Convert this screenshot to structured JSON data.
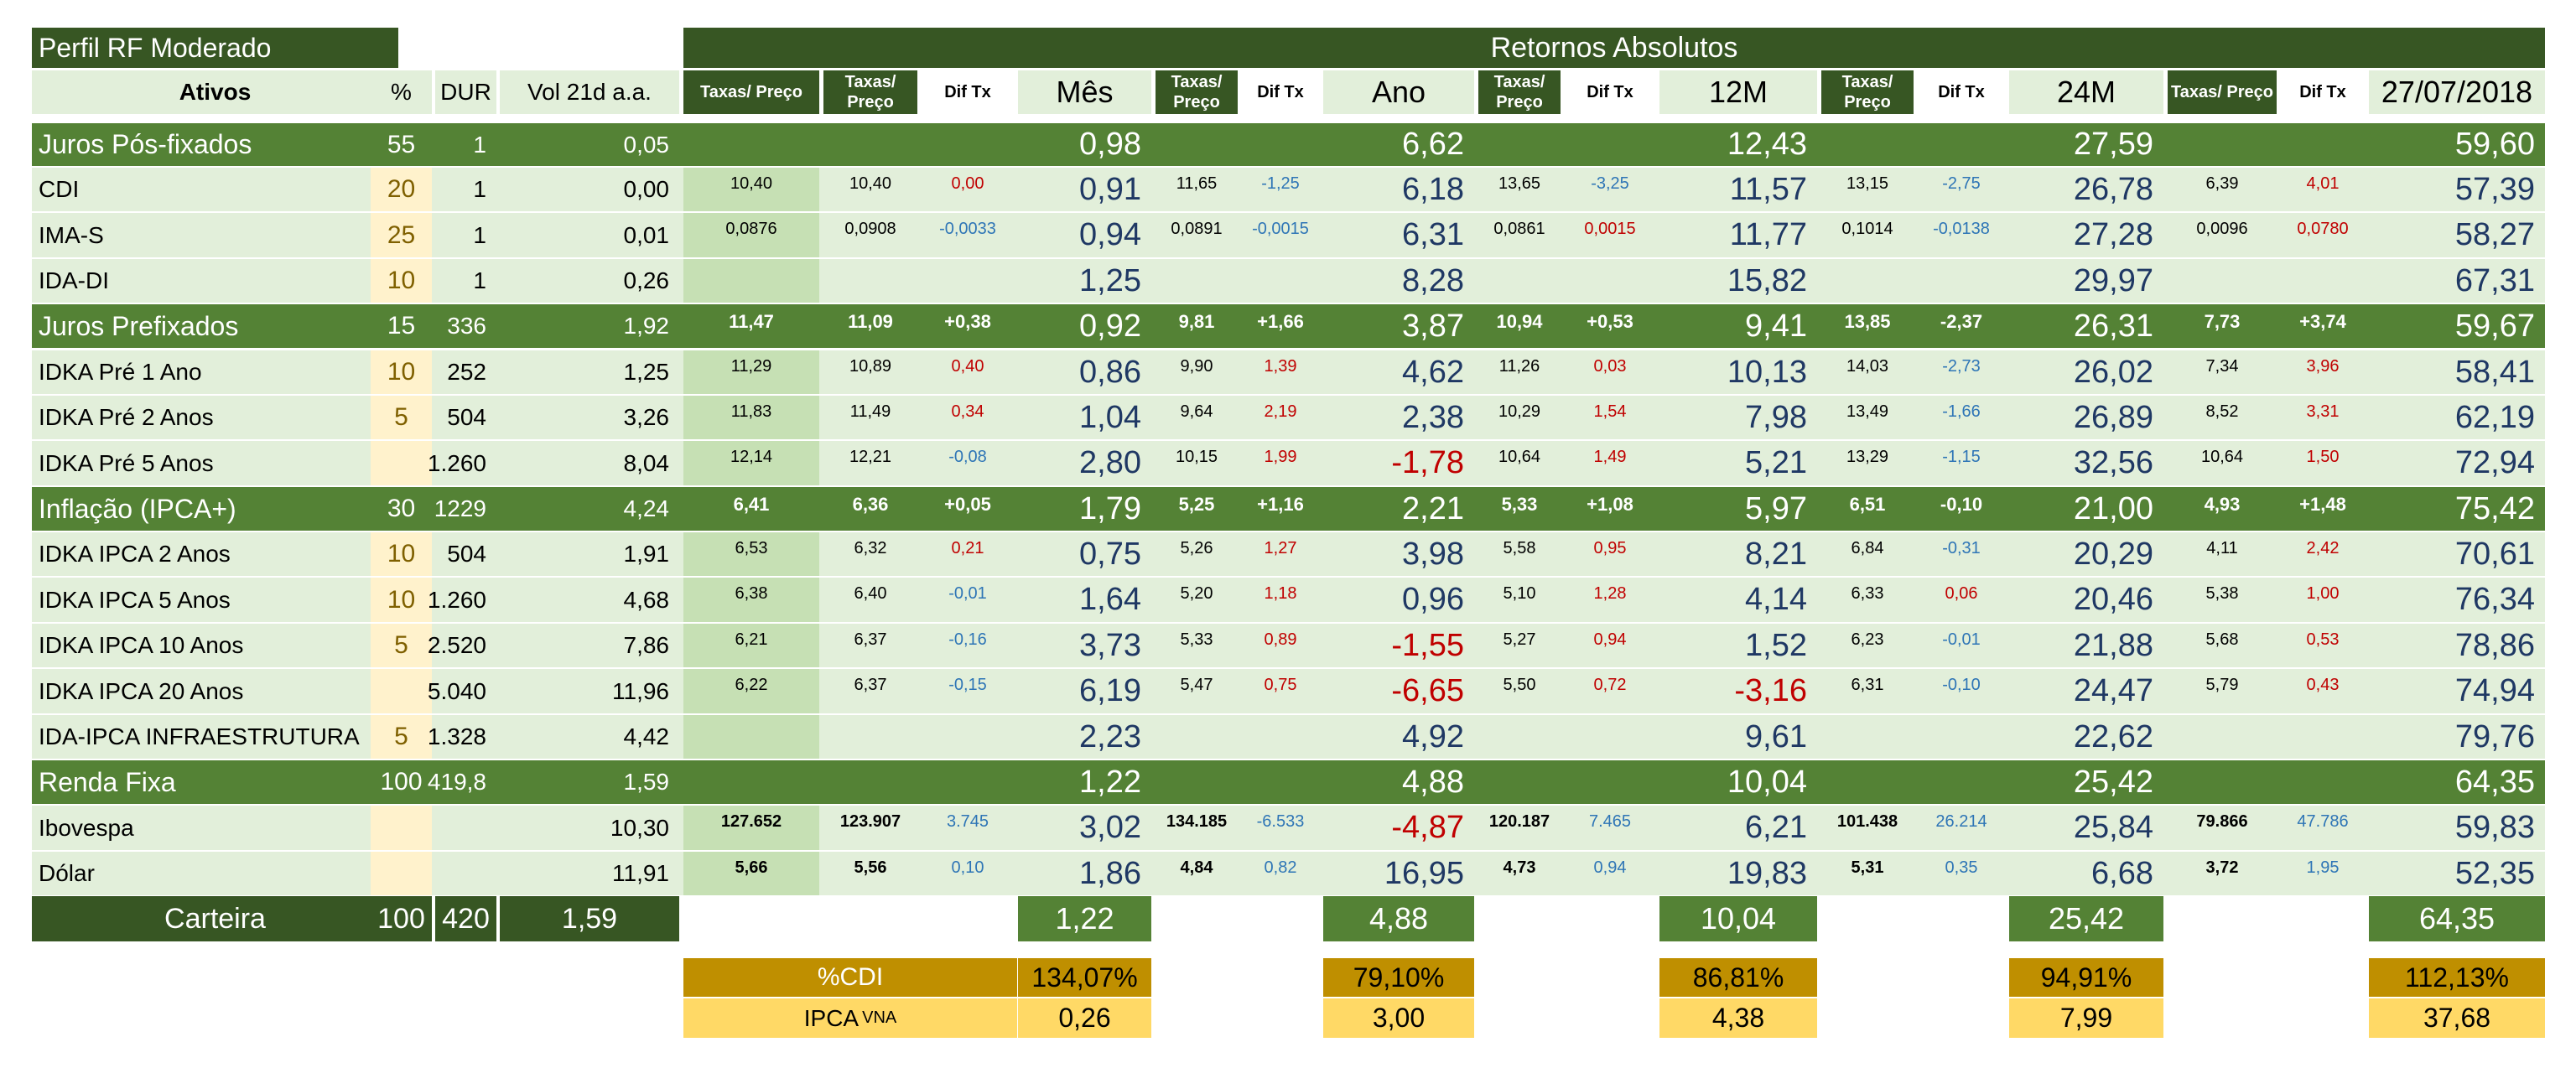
{
  "header": {
    "profile": "Perfil RF Moderado",
    "returns_title": "Retornos Absolutos",
    "col_ativos": "Ativos",
    "col_pct": "%",
    "col_dur": "DUR",
    "col_vol": "Vol 21d a.a.",
    "taxas_preco_1": "Taxas/  Preço",
    "taxas_preco_2": "Taxas/ Preço",
    "dif_tx": "Dif Tx",
    "period_mes": "Mês",
    "period_ano": "Ano",
    "period_12m": "12M",
    "period_24m": "24M",
    "period_date": "27/07/2018"
  },
  "rows": [
    {
      "kind": "section",
      "name": "Juros Pós-fixados",
      "pct": "55",
      "dur": "1",
      "vol": "0,05",
      "g": [
        [
          "",
          "",
          "",
          "0,98"
        ],
        [
          "",
          "",
          "6,62"
        ],
        [
          "",
          "",
          "12,43"
        ],
        [
          "",
          "",
          "27,59"
        ],
        [
          "",
          "",
          "59,60"
        ]
      ]
    },
    {
      "kind": "item",
      "name": "CDI",
      "pct": "20",
      "dur": "1",
      "vol": "0,00",
      "g": [
        [
          "10,40",
          "10,40",
          "0,00",
          "0,91"
        ],
        [
          "11,65",
          "-1,25",
          "6,18"
        ],
        [
          "13,65",
          "-3,25",
          "11,57"
        ],
        [
          "13,15",
          "-2,75",
          "26,78"
        ],
        [
          "6,39",
          "4,01",
          "57,39"
        ]
      ]
    },
    {
      "kind": "item",
      "name": "IMA-S",
      "pct": "25",
      "dur": "1",
      "vol": "0,01",
      "g": [
        [
          "0,0876",
          "0,0908",
          "-0,0033",
          "0,94"
        ],
        [
          "0,0891",
          "-0,0015",
          "6,31"
        ],
        [
          "0,0861",
          "0,0015",
          "11,77"
        ],
        [
          "0,1014",
          "-0,0138",
          "27,28"
        ],
        [
          "0,0096",
          "0,0780",
          "58,27"
        ]
      ]
    },
    {
      "kind": "item",
      "name": "IDA-DI",
      "pct": "10",
      "dur": "1",
      "vol": "0,26",
      "g": [
        [
          "",
          "",
          "",
          "1,25"
        ],
        [
          "",
          "",
          "8,28"
        ],
        [
          "",
          "",
          "15,82"
        ],
        [
          "",
          "",
          "29,97"
        ],
        [
          "",
          "",
          "67,31"
        ]
      ]
    },
    {
      "kind": "section",
      "name": "Juros Prefixados",
      "pct": "15",
      "dur": "336",
      "vol": "1,92",
      "g": [
        [
          "11,47",
          "11,09",
          "+0,38",
          "0,92"
        ],
        [
          "9,81",
          "+1,66",
          "3,87"
        ],
        [
          "10,94",
          "+0,53",
          "9,41"
        ],
        [
          "13,85",
          "-2,37",
          "26,31"
        ],
        [
          "7,73",
          "+3,74",
          "59,67"
        ]
      ]
    },
    {
      "kind": "item",
      "name": "IDKA Pré 1 Ano",
      "pct": "10",
      "dur": "252",
      "vol": "1,25",
      "g": [
        [
          "11,29",
          "10,89",
          "0,40",
          "0,86"
        ],
        [
          "9,90",
          "1,39",
          "4,62"
        ],
        [
          "11,26",
          "0,03",
          "10,13"
        ],
        [
          "14,03",
          "-2,73",
          "26,02"
        ],
        [
          "7,34",
          "3,96",
          "58,41"
        ]
      ]
    },
    {
      "kind": "item",
      "name": "IDKA Pré 2 Anos",
      "pct": "5",
      "dur": "504",
      "vol": "3,26",
      "g": [
        [
          "11,83",
          "11,49",
          "0,34",
          "1,04"
        ],
        [
          "9,64",
          "2,19",
          "2,38"
        ],
        [
          "10,29",
          "1,54",
          "7,98"
        ],
        [
          "13,49",
          "-1,66",
          "26,89"
        ],
        [
          "8,52",
          "3,31",
          "62,19"
        ]
      ]
    },
    {
      "kind": "item",
      "name": "IDKA Pré 5 Anos",
      "pct": "",
      "dur": "1.260",
      "vol": "8,04",
      "g": [
        [
          "12,14",
          "12,21",
          "-0,08",
          "2,80"
        ],
        [
          "10,15",
          "1,99",
          "-1,78"
        ],
        [
          "10,64",
          "1,49",
          "5,21"
        ],
        [
          "13,29",
          "-1,15",
          "32,56"
        ],
        [
          "10,64",
          "1,50",
          "72,94"
        ]
      ]
    },
    {
      "kind": "section",
      "name": "Inflação (IPCA+)",
      "pct": "30",
      "dur": "1229",
      "vol": "4,24",
      "g": [
        [
          "6,41",
          "6,36",
          "+0,05",
          "1,79"
        ],
        [
          "5,25",
          "+1,16",
          "2,21"
        ],
        [
          "5,33",
          "+1,08",
          "5,97"
        ],
        [
          "6,51",
          "-0,10",
          "21,00"
        ],
        [
          "4,93",
          "+1,48",
          "75,42"
        ]
      ]
    },
    {
      "kind": "item",
      "name": "IDKA IPCA 2 Anos",
      "pct": "10",
      "dur": "504",
      "vol": "1,91",
      "g": [
        [
          "6,53",
          "6,32",
          "0,21",
          "0,75"
        ],
        [
          "5,26",
          "1,27",
          "3,98"
        ],
        [
          "5,58",
          "0,95",
          "8,21"
        ],
        [
          "6,84",
          "-0,31",
          "20,29"
        ],
        [
          "4,11",
          "2,42",
          "70,61"
        ]
      ]
    },
    {
      "kind": "item",
      "name": "IDKA IPCA 5 Anos",
      "pct": "10",
      "dur": "1.260",
      "vol": "4,68",
      "g": [
        [
          "6,38",
          "6,40",
          "-0,01",
          "1,64"
        ],
        [
          "5,20",
          "1,18",
          "0,96"
        ],
        [
          "5,10",
          "1,28",
          "4,14"
        ],
        [
          "6,33",
          "0,06",
          "20,46"
        ],
        [
          "5,38",
          "1,00",
          "76,34"
        ]
      ]
    },
    {
      "kind": "item",
      "name": "IDKA IPCA 10 Anos",
      "pct": "5",
      "dur": "2.520",
      "vol": "7,86",
      "g": [
        [
          "6,21",
          "6,37",
          "-0,16",
          "3,73"
        ],
        [
          "5,33",
          "0,89",
          "-1,55"
        ],
        [
          "5,27",
          "0,94",
          "1,52"
        ],
        [
          "6,23",
          "-0,01",
          "21,88"
        ],
        [
          "5,68",
          "0,53",
          "78,86"
        ]
      ]
    },
    {
      "kind": "item",
      "name": "IDKA IPCA 20 Anos",
      "pct": "",
      "dur": "5.040",
      "vol": "11,96",
      "g": [
        [
          "6,22",
          "6,37",
          "-0,15",
          "6,19"
        ],
        [
          "5,47",
          "0,75",
          "-6,65"
        ],
        [
          "5,50",
          "0,72",
          "-3,16"
        ],
        [
          "6,31",
          "-0,10",
          "24,47"
        ],
        [
          "5,79",
          "0,43",
          "74,94"
        ]
      ]
    },
    {
      "kind": "item",
      "name": "IDA-IPCA INFRAESTRUTURA",
      "pct": "5",
      "dur": "1.328",
      "vol": "4,42",
      "g": [
        [
          "",
          "",
          "",
          "2,23"
        ],
        [
          "",
          "",
          "4,92"
        ],
        [
          "",
          "",
          "9,61"
        ],
        [
          "",
          "",
          "22,62"
        ],
        [
          "",
          "",
          "79,76"
        ]
      ]
    },
    {
      "kind": "section",
      "name": "Renda Fixa",
      "pct": "100",
      "dur": "419,8",
      "vol": "1,59",
      "g": [
        [
          "",
          "",
          "",
          "1,22"
        ],
        [
          "",
          "",
          "4,88"
        ],
        [
          "",
          "",
          "10,04"
        ],
        [
          "",
          "",
          "25,42"
        ],
        [
          "",
          "",
          "64,35"
        ]
      ]
    },
    {
      "kind": "market",
      "name": "Ibovespa",
      "pct": "",
      "dur": "",
      "vol": "10,30",
      "g": [
        [
          "127.652",
          "123.907",
          "3.745",
          "3,02"
        ],
        [
          "134.185",
          "-6.533",
          "-4,87"
        ],
        [
          "120.187",
          "7.465",
          "6,21"
        ],
        [
          "101.438",
          "26.214",
          "25,84"
        ],
        [
          "79.866",
          "47.786",
          "59,83"
        ]
      ]
    },
    {
      "kind": "market",
      "name": "Dólar",
      "pct": "",
      "dur": "",
      "vol": "11,91",
      "g": [
        [
          "5,66",
          "5,56",
          "0,10",
          "1,86"
        ],
        [
          "4,84",
          "0,82",
          "16,95"
        ],
        [
          "4,73",
          "0,94",
          "19,83"
        ],
        [
          "5,31",
          "0,35",
          "6,68"
        ],
        [
          "3,72",
          "1,95",
          "52,35"
        ]
      ]
    }
  ],
  "carteira": {
    "name": "Carteira",
    "pct": "100",
    "dur": "420",
    "vol": "1,59",
    "values": [
      "1,22",
      "4,88",
      "10,04",
      "25,42",
      "64,35"
    ]
  },
  "pct_cdi": {
    "label": "%CDI",
    "values": [
      "134,07%",
      "79,10%",
      "86,81%",
      "94,91%",
      "112,13%"
    ]
  },
  "ipca_vna": {
    "label": "IPCA",
    "sup": "VNA",
    "values": [
      "0,26",
      "3,00",
      "4,38",
      "7,99",
      "37,68"
    ]
  },
  "colors": {
    "dark_green": "#375623",
    "mid_green": "#548235",
    "light_green": "#e2efda",
    "rate_green": "#c6e0b4",
    "cream": "#fff2cc",
    "gold": "#bf8f00",
    "yellow": "#ffd966",
    "blue_text": "#1f3864",
    "positive": "#2e75b6",
    "negative": "#c00000"
  }
}
